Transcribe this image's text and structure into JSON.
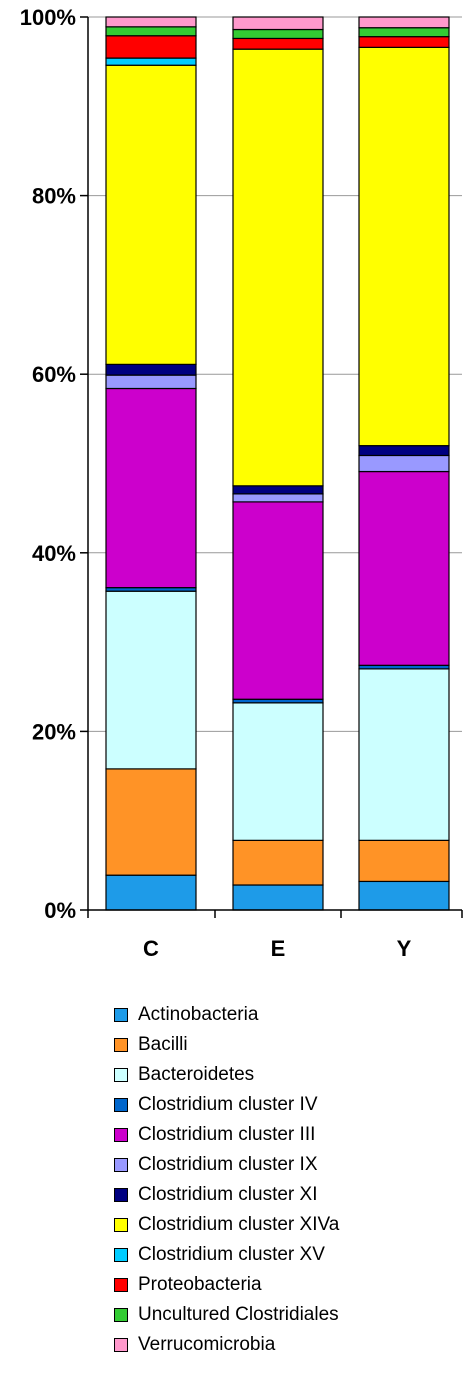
{
  "chart_data": {
    "type": "bar",
    "stacked": true,
    "percent": true,
    "title": "",
    "xlabel": "",
    "ylabel": "",
    "ylim": [
      0,
      100
    ],
    "yticks": [
      "0%",
      "20%",
      "40%",
      "60%",
      "80%",
      "100%"
    ],
    "grid": true,
    "legend_position": "bottom",
    "categories": [
      "C",
      "E",
      "Y"
    ],
    "series": [
      {
        "name": "Actinobacteria",
        "color": "#1E9BE8",
        "values": [
          3.9,
          2.8,
          3.2
        ]
      },
      {
        "name": "Bacilli",
        "color": "#FF9326",
        "values": [
          11.9,
          5.0,
          4.6
        ]
      },
      {
        "name": "Bacteroidetes",
        "color": "#CCFFFF",
        "values": [
          19.9,
          15.4,
          19.2
        ]
      },
      {
        "name": "Clostridium cluster IV",
        "color": "#0066CC",
        "values": [
          0.4,
          0.4,
          0.4
        ]
      },
      {
        "name": "Clostridium cluster III",
        "color": "#CC00CC",
        "values": [
          22.3,
          22.1,
          21.7
        ]
      },
      {
        "name": "Clostridium cluster IX",
        "color": "#9999FF",
        "values": [
          1.5,
          0.9,
          1.8
        ]
      },
      {
        "name": "Clostridium cluster XI",
        "color": "#000080",
        "values": [
          1.2,
          0.9,
          1.1
        ]
      },
      {
        "name": "Clostridium cluster XIVa",
        "color": "#FFFF00",
        "values": [
          33.5,
          48.9,
          44.6
        ]
      },
      {
        "name": "Clostridium cluster XV",
        "color": "#00CCFF",
        "values": [
          0.8,
          0.0,
          0.0
        ]
      },
      {
        "name": "Proteobacteria",
        "color": "#FF0000",
        "values": [
          2.5,
          1.2,
          1.2
        ]
      },
      {
        "name": "Uncultured Clostridiales",
        "color": "#33CC33",
        "values": [
          1.0,
          1.0,
          1.0
        ]
      },
      {
        "name": "Verrucomicrobia",
        "color": "#FF99CC",
        "values": [
          1.1,
          1.4,
          1.2
        ]
      }
    ]
  }
}
